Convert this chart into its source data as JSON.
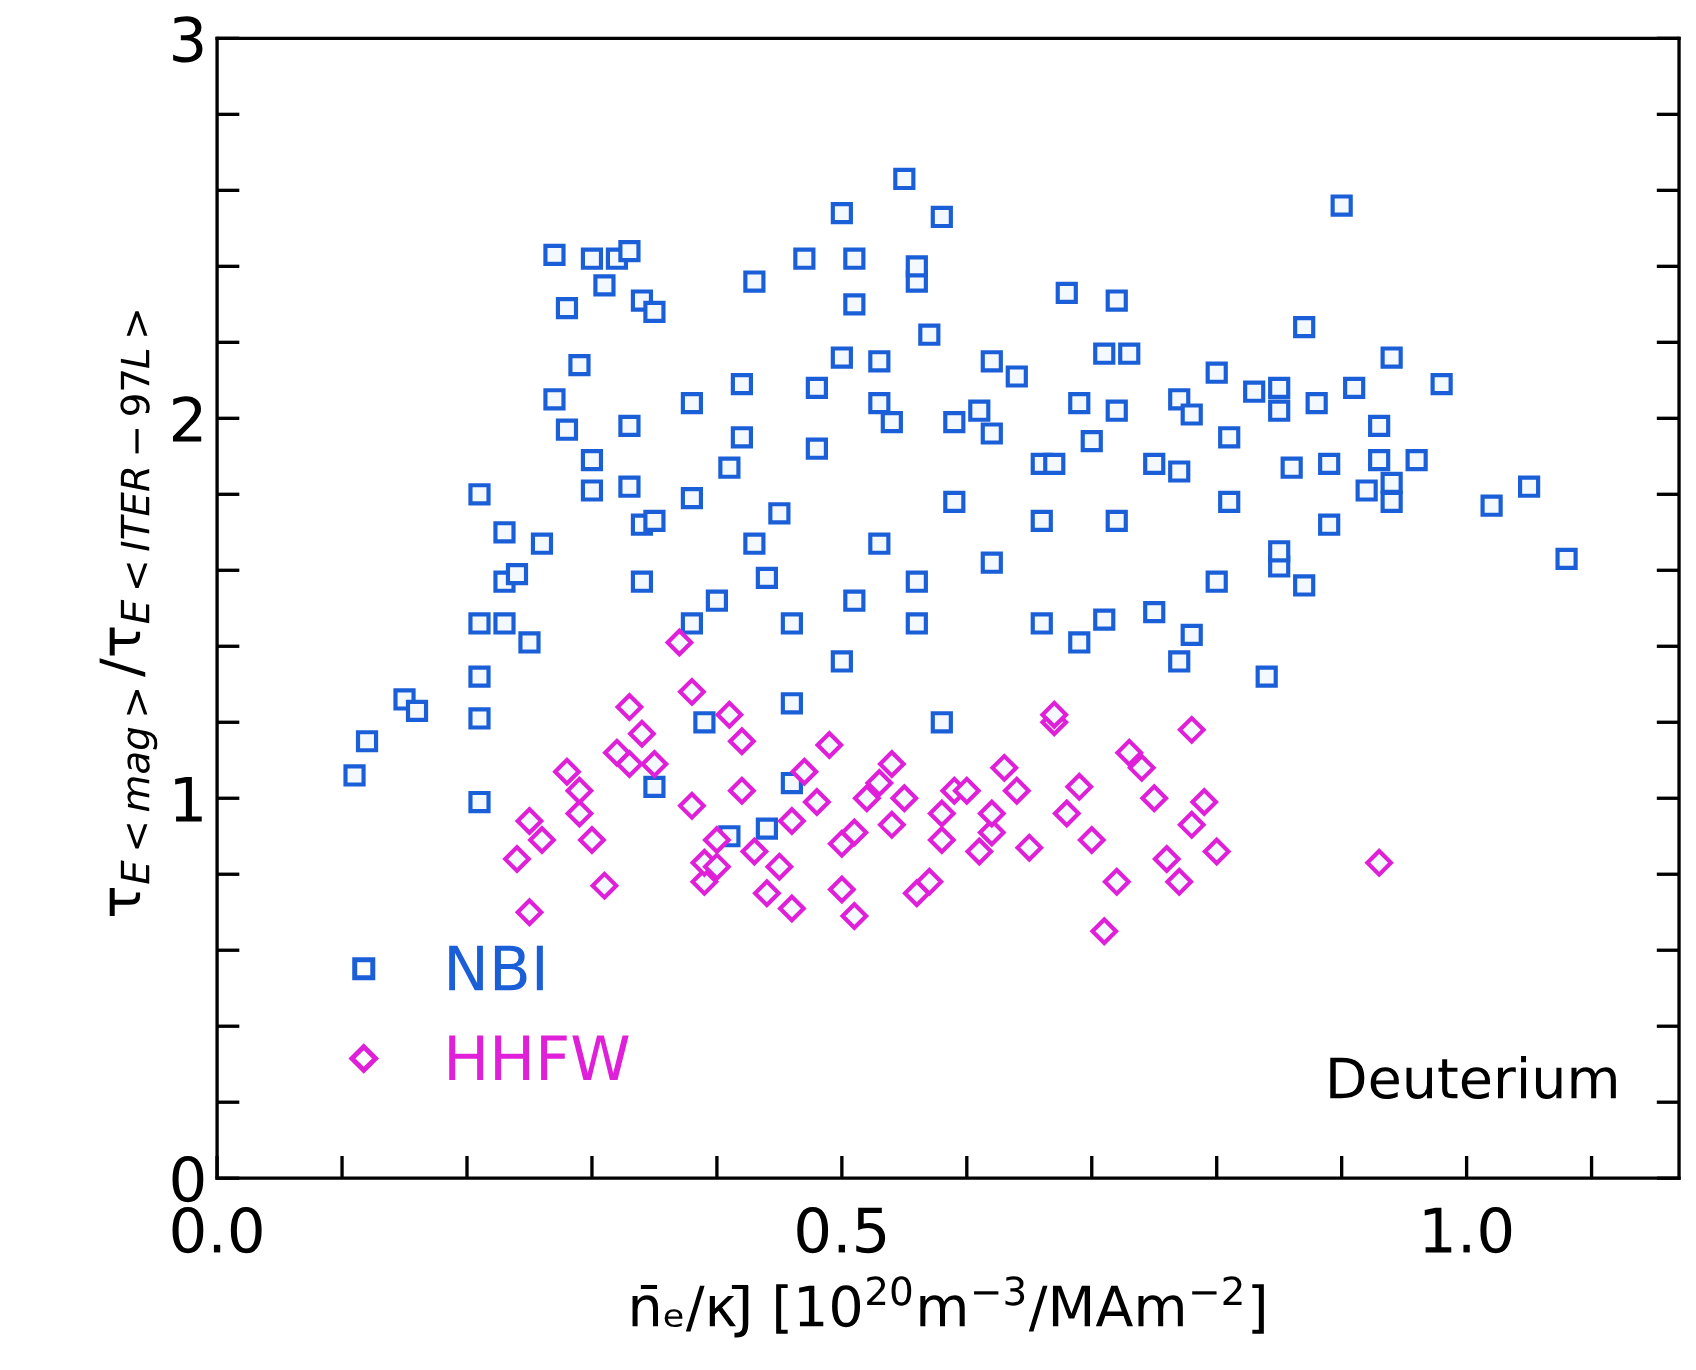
{
  "chart_data": {
    "type": "scatter",
    "xlabel": "n̄ₑ/κJ̄ [10$^{20}$m$^{−3}$/MAm$^{−2}$]",
    "ylabel": "τ$_{E<mag>}$/τ$_{E<ITER−97L>}$",
    "xlim": [
      0,
      1.17
    ],
    "xticks": [
      {
        "value": 0,
        "label": "0.0"
      },
      {
        "value": 0.1,
        "label": null
      },
      {
        "value": 0.2,
        "label": null
      },
      {
        "value": 0.3,
        "label": null
      },
      {
        "value": 0.4,
        "label": null
      },
      {
        "value": 0.5,
        "label": "0.5"
      },
      {
        "value": 0.6,
        "label": null
      },
      {
        "value": 0.7,
        "label": null
      },
      {
        "value": 0.8,
        "label": null
      },
      {
        "value": 0.9,
        "label": null
      },
      {
        "value": 1.0,
        "label": "1.0"
      },
      {
        "value": 1.1,
        "label": null
      }
    ],
    "ylim": [
      0,
      3
    ],
    "yticks": [
      0,
      {
        "value": 0.2,
        "label": null
      },
      {
        "value": 0.4,
        "label": null
      },
      {
        "value": 0.6,
        "label": null
      },
      {
        "value": 0.8,
        "label": null
      },
      1,
      {
        "value": 1.2,
        "label": null
      },
      {
        "value": 1.4,
        "label": null
      },
      {
        "value": 1.6,
        "label": null
      },
      {
        "value": 1.8,
        "label": null
      },
      2,
      {
        "value": 2.2,
        "label": null
      },
      {
        "value": 2.4,
        "label": null
      },
      {
        "value": 2.6,
        "label": null
      },
      {
        "value": 2.8,
        "label": null
      },
      3
    ],
    "grid": false,
    "legend": "bottom left",
    "annotations": [
      "Deuterium"
    ],
    "series": [
      {
        "name": "NBI",
        "color": "#1a5fd8",
        "marker": "square",
        "x": [
          0.11,
          0.12,
          0.15,
          0.16,
          0.21,
          0.21,
          0.21,
          0.21,
          0.21,
          0.23,
          0.23,
          0.23,
          0.24,
          0.27,
          0.28,
          0.3,
          0.31,
          0.32,
          0.33,
          0.34,
          0.27,
          0.28,
          0.29,
          0.3,
          0.33,
          0.33,
          0.34,
          0.34,
          0.35,
          0.38,
          0.38,
          0.39,
          0.4,
          0.41,
          0.42,
          0.42,
          0.43,
          0.44,
          0.43,
          0.45,
          0.46,
          0.46,
          0.48,
          0.48,
          0.5,
          0.51,
          0.53,
          0.54,
          0.56,
          0.57,
          0.58,
          0.55,
          0.59,
          0.61,
          0.62,
          0.64,
          0.66,
          0.67,
          0.69,
          0.7,
          0.71,
          0.72,
          0.73,
          0.75,
          0.77,
          0.78,
          0.8,
          0.81,
          0.83,
          0.85,
          0.86,
          0.88,
          0.89,
          0.91,
          0.93,
          0.94,
          0.96,
          0.9,
          0.87,
          0.98,
          1.02,
          1.05,
          1.08,
          0.93,
          0.94,
          0.92,
          0.89,
          0.87,
          0.85,
          0.8,
          0.85,
          0.84,
          0.77,
          0.78,
          0.75,
          0.81,
          0.72,
          0.69,
          0.62,
          0.56,
          0.51,
          0.5,
          0.46,
          0.44,
          0.58,
          0.53,
          0.66,
          0.85,
          0.94,
          0.38,
          0.35,
          0.3,
          0.26,
          0.25,
          0.71,
          0.72,
          0.62,
          0.53,
          0.77,
          0.59,
          0.56,
          0.66,
          0.68,
          0.41,
          0.35,
          0.56,
          0.51,
          0.47,
          0.5
        ],
        "values": [
          1.06,
          1.15,
          1.26,
          1.23,
          0.99,
          1.21,
          1.32,
          1.46,
          1.8,
          1.7,
          1.46,
          1.57,
          1.59,
          2.43,
          2.29,
          2.42,
          2.35,
          2.42,
          2.44,
          2.31,
          2.05,
          1.97,
          2.14,
          1.89,
          1.82,
          1.98,
          1.72,
          1.57,
          2.28,
          2.04,
          1.46,
          1.2,
          1.52,
          1.87,
          1.95,
          2.09,
          1.67,
          1.58,
          2.36,
          1.75,
          1.46,
          1.25,
          1.92,
          2.08,
          2.16,
          2.3,
          2.04,
          1.99,
          2.36,
          2.22,
          2.53,
          2.63,
          1.99,
          2.02,
          1.96,
          2.11,
          1.88,
          1.88,
          2.04,
          1.94,
          2.17,
          2.02,
          2.17,
          1.88,
          2.05,
          2.01,
          2.12,
          1.95,
          2.07,
          2.02,
          1.87,
          2.04,
          1.88,
          2.08,
          1.98,
          2.16,
          1.89,
          2.56,
          2.24,
          2.09,
          1.77,
          1.82,
          1.63,
          1.89,
          1.83,
          1.81,
          1.72,
          1.56,
          1.61,
          1.57,
          2.08,
          1.32,
          1.36,
          1.43,
          1.49,
          1.78,
          1.73,
          1.41,
          1.62,
          1.57,
          1.52,
          1.36,
          1.04,
          0.92,
          1.2,
          1.67,
          1.46,
          1.65,
          1.78,
          1.79,
          1.73,
          1.81,
          1.67,
          1.41,
          1.47,
          2.31,
          2.15,
          2.15,
          1.86,
          1.78,
          1.46,
          1.73,
          2.33,
          0.9,
          1.03,
          2.4,
          2.42,
          2.42,
          2.54
        ]
      },
      {
        "name": "HHFW",
        "color": "#e020d8",
        "marker": "diamond",
        "x": [
          0.24,
          0.25,
          0.25,
          0.26,
          0.28,
          0.29,
          0.29,
          0.3,
          0.31,
          0.32,
          0.33,
          0.33,
          0.34,
          0.35,
          0.37,
          0.38,
          0.38,
          0.39,
          0.39,
          0.4,
          0.4,
          0.41,
          0.42,
          0.42,
          0.43,
          0.44,
          0.45,
          0.46,
          0.46,
          0.47,
          0.48,
          0.49,
          0.5,
          0.5,
          0.51,
          0.51,
          0.52,
          0.53,
          0.54,
          0.54,
          0.55,
          0.56,
          0.57,
          0.58,
          0.58,
          0.59,
          0.6,
          0.61,
          0.62,
          0.62,
          0.63,
          0.64,
          0.65,
          0.67,
          0.68,
          0.69,
          0.7,
          0.72,
          0.73,
          0.74,
          0.75,
          0.76,
          0.77,
          0.78,
          0.78,
          0.79,
          0.8,
          0.71,
          0.93,
          0.67
        ],
        "values": [
          0.84,
          0.94,
          0.7,
          0.89,
          1.07,
          0.96,
          1.02,
          0.89,
          0.77,
          1.12,
          1.24,
          1.09,
          1.17,
          1.09,
          1.41,
          1.28,
          0.98,
          0.78,
          0.83,
          0.82,
          0.89,
          1.22,
          1.15,
          1.02,
          0.86,
          0.75,
          0.82,
          0.71,
          0.94,
          1.07,
          0.99,
          1.14,
          0.88,
          0.76,
          0.69,
          0.91,
          1.0,
          1.04,
          0.93,
          1.09,
          1.0,
          0.75,
          0.78,
          0.89,
          0.96,
          1.02,
          1.02,
          0.86,
          0.91,
          0.96,
          1.08,
          1.02,
          0.87,
          1.2,
          0.96,
          1.03,
          0.89,
          0.78,
          1.12,
          1.08,
          1.0,
          0.84,
          0.78,
          1.18,
          0.93,
          0.99,
          0.86,
          0.65,
          0.83,
          1.22
        ]
      }
    ]
  }
}
